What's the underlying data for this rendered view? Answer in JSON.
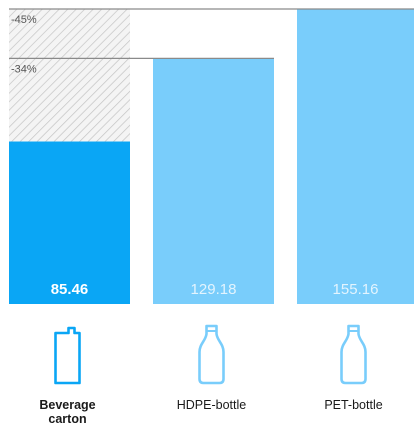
{
  "chart_data": {
    "type": "bar",
    "categories": [
      "Beverage carton",
      "HDPE-bottle",
      "PET-bottle"
    ],
    "category_labels": [
      {
        "lines": [
          "Beverage",
          "carton"
        ],
        "bold": true
      },
      {
        "lines": [
          "HDPE-bottle"
        ],
        "bold": false
      },
      {
        "lines": [
          "PET-bottle"
        ],
        "bold": false
      }
    ],
    "values": [
      85.46,
      129.18,
      155.16
    ],
    "value_labels": [
      "85.46",
      "129.18",
      "155.16"
    ],
    "reference_lines": [
      {
        "label": "-45%",
        "value": 155.16
      },
      {
        "label": "-34%",
        "value": 129.18
      }
    ],
    "icons": [
      "carton-icon",
      "hdpe-bottle-icon",
      "pet-bottle-icon"
    ],
    "ylim": [
      0,
      155.16
    ],
    "colors": {
      "highlight": "#0aa6f5",
      "bar": "#79cdfb",
      "highlight_text": "#ffffff",
      "bar_text": "#e3f4fe",
      "icon_highlight": "#0aa6f5",
      "icon": "#79cdfb",
      "reference_line": "#8a8a8a",
      "hatch": "#bdbdbd"
    }
  }
}
